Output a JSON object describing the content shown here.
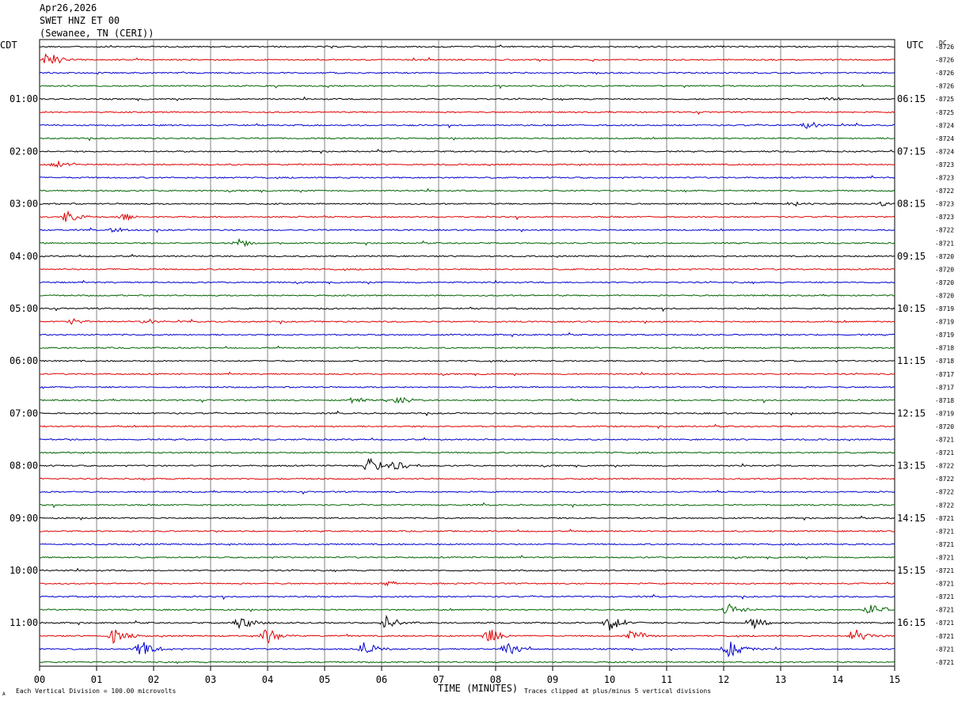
{
  "header": {
    "date": "Apr26,2026",
    "station": "SWET HNZ ET 00",
    "location": "(Sewanee, TN (CERI))"
  },
  "left_tz": "CDT",
  "right_tz": "UTC",
  "dc_label": "DC",
  "footer": {
    "scale_note": "Each Vertical Division =  100.00 microvolts",
    "clip_note": "Traces clipped at plus/minus 5 vertical divisions",
    "corner_mark": "A"
  },
  "colors": {
    "trace_cycle": [
      "#000000",
      "#e00000",
      "#0000d0",
      "#006400"
    ],
    "grid": "#808080"
  },
  "chart_data": {
    "type": "line",
    "title": "SWET HNZ ET 00",
    "xlabel": "TIME (MINUTES)",
    "x_ticks": [
      "00",
      "01",
      "02",
      "03",
      "04",
      "05",
      "06",
      "07",
      "08",
      "09",
      "10",
      "11",
      "12",
      "13",
      "14",
      "15"
    ],
    "xlim": [
      0,
      15
    ],
    "left_time_labels": [
      "01:00",
      "02:00",
      "03:00",
      "04:00",
      "05:00",
      "06:00",
      "07:00",
      "08:00",
      "09:00",
      "10:00",
      "11:00"
    ],
    "right_time_labels": [
      "06:15",
      "07:15",
      "08:15",
      "09:15",
      "10:15",
      "11:15",
      "12:15",
      "13:15",
      "14:15",
      "15:15",
      "16:15"
    ],
    "row_offsets": [
      "-8726",
      "-8726",
      "-8726",
      "-8726",
      "-8725",
      "-8725",
      "-8724",
      "-8724",
      "-8724",
      "-8723",
      "-8723",
      "-8722",
      "-8723",
      "-8723",
      "-8722",
      "-8721",
      "-8720",
      "-8720",
      "-8720",
      "-8720",
      "-8719",
      "-8719",
      "-8719",
      "-8718",
      "-8718",
      "-8717",
      "-8717",
      "-8718",
      "-8719",
      "-8720",
      "-8721",
      "-8721",
      "-8722",
      "-8722",
      "-8722",
      "-8722",
      "-8721",
      "-8721",
      "-8721",
      "-8721",
      "-8721",
      "-8721",
      "-8721",
      "-8721",
      "-8721",
      "-8721",
      "-8721",
      "-8721"
    ],
    "events": [
      {
        "row": 1,
        "minute": 0.15,
        "amp": 10
      },
      {
        "row": 4,
        "minute": 13.8,
        "amp": 3
      },
      {
        "row": 6,
        "minute": 13.5,
        "amp": 6
      },
      {
        "row": 9,
        "minute": 0.3,
        "amp": 5
      },
      {
        "row": 12,
        "minute": 13.2,
        "amp": 3
      },
      {
        "row": 12,
        "minute": 14.8,
        "amp": 3
      },
      {
        "row": 13,
        "minute": 0.5,
        "amp": 9
      },
      {
        "row": 13,
        "minute": 1.5,
        "amp": 5
      },
      {
        "row": 14,
        "minute": 1.3,
        "amp": 3
      },
      {
        "row": 15,
        "minute": 3.5,
        "amp": 5
      },
      {
        "row": 21,
        "minute": 0.6,
        "amp": 4
      },
      {
        "row": 21,
        "minute": 1.9,
        "amp": 4
      },
      {
        "row": 27,
        "minute": 5.5,
        "amp": 4
      },
      {
        "row": 27,
        "minute": 6.3,
        "amp": 5
      },
      {
        "row": 32,
        "minute": 5.8,
        "amp": 11
      },
      {
        "row": 32,
        "minute": 6.2,
        "amp": 9
      },
      {
        "row": 41,
        "minute": 6.1,
        "amp": 3
      },
      {
        "row": 43,
        "minute": 12.1,
        "amp": 9
      },
      {
        "row": 43,
        "minute": 14.6,
        "amp": 9
      },
      {
        "row": 44,
        "minute": 3.5,
        "amp": 10
      },
      {
        "row": 44,
        "minute": 6.1,
        "amp": 9
      },
      {
        "row": 44,
        "minute": 10.0,
        "amp": 10
      },
      {
        "row": 44,
        "minute": 12.5,
        "amp": 8
      },
      {
        "row": 45,
        "minute": 1.3,
        "amp": 10
      },
      {
        "row": 45,
        "minute": 4.0,
        "amp": 10
      },
      {
        "row": 45,
        "minute": 7.9,
        "amp": 11
      },
      {
        "row": 45,
        "minute": 10.4,
        "amp": 9
      },
      {
        "row": 45,
        "minute": 14.3,
        "amp": 10
      },
      {
        "row": 46,
        "minute": 1.8,
        "amp": 11
      },
      {
        "row": 46,
        "minute": 5.7,
        "amp": 11
      },
      {
        "row": 46,
        "minute": 8.2,
        "amp": 9
      },
      {
        "row": 46,
        "minute": 12.1,
        "amp": 11
      }
    ]
  }
}
